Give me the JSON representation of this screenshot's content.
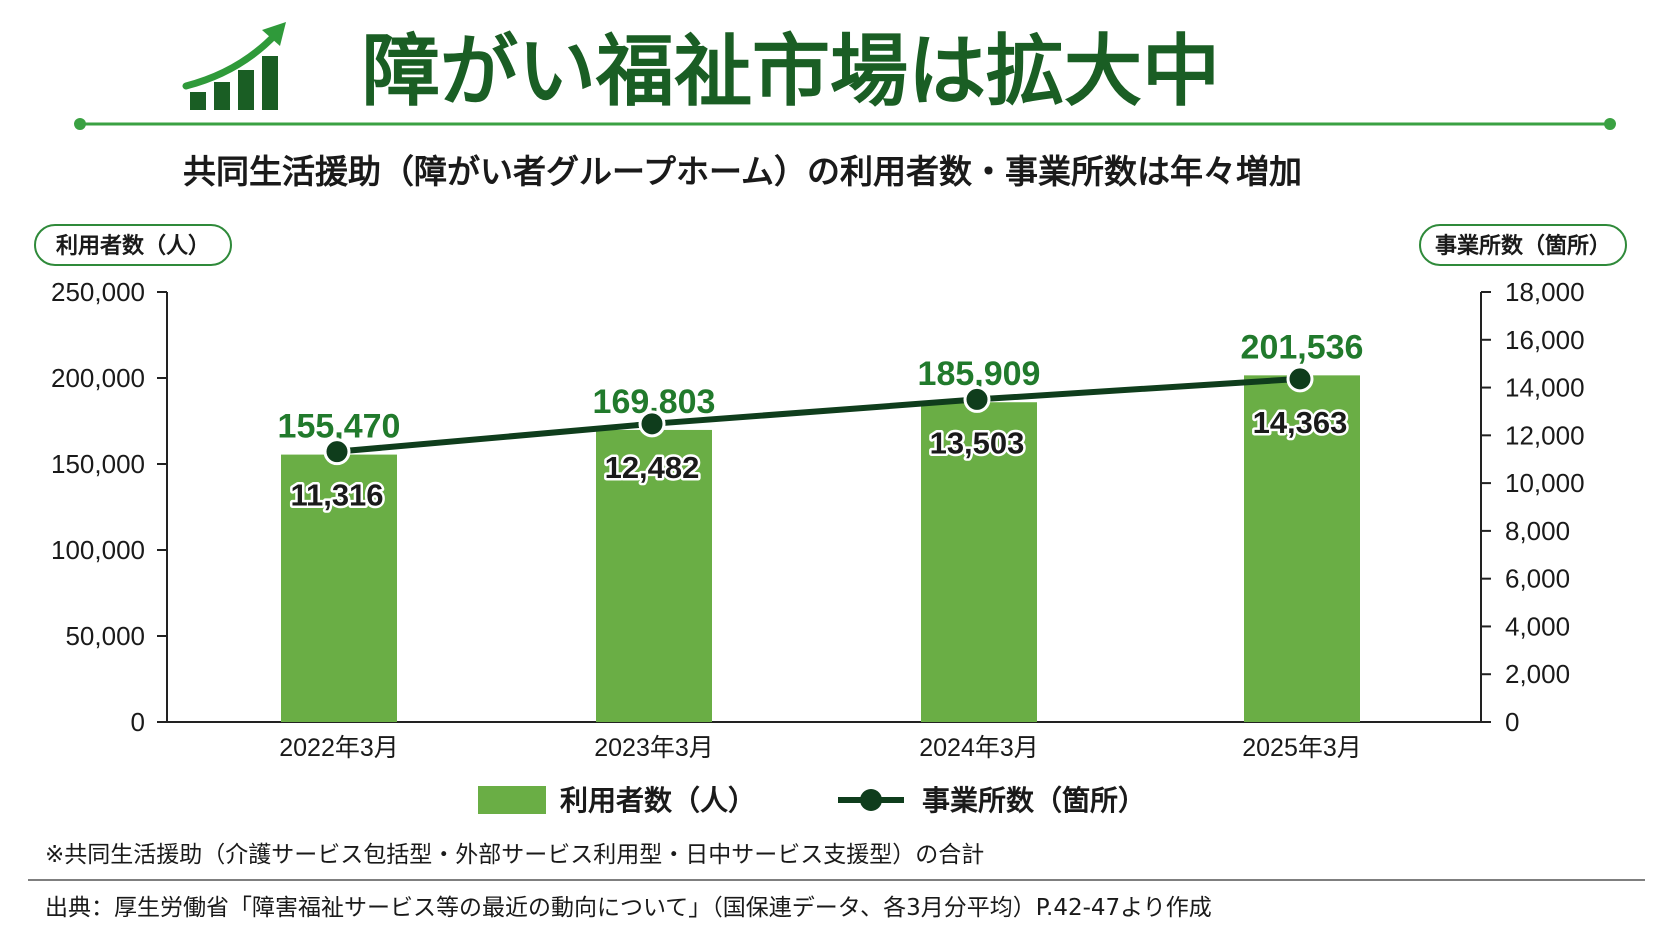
{
  "title": "障がい福祉市場は拡大中",
  "subtitle": "共同生活援助（障がい者グループホーム）の利用者数・事業所数は年々増加",
  "note": "※共同生活援助（介護サービス包括型・外部サービス利用型・日中サービス支援型）の合計",
  "source": "出典：厚生労働省「障害福祉サービス等の最近の動向について」（国保連データ、各3月分平均）P.42-47より作成",
  "icons": {
    "title": "growth-chart-icon"
  },
  "colors": {
    "bar": "#6aae45",
    "line": "#0f3d1c",
    "title": "#1a5e24",
    "value": "#217a2c",
    "rule": "#3aa142"
  },
  "chart_data": {
    "type": "bar",
    "categories": [
      "2022年3月",
      "2023年3月",
      "2024年3月",
      "2025年3月"
    ],
    "ylabel_left": "利用者数（人）",
    "ylabel_right": "事業所数（箇所）",
    "ylim_left": [
      0,
      250000
    ],
    "ylim_right": [
      0,
      18000
    ],
    "yticks_left": [
      "250,000",
      "200,000",
      "150,000",
      "100,000",
      "50,000",
      "0"
    ],
    "yticks_right": [
      "18,000",
      "16,000",
      "14,000",
      "12,000",
      "10,000",
      "8,000",
      "6,000",
      "4,000",
      "2,000",
      "0"
    ],
    "grid": false,
    "legend_position": "bottom",
    "series": [
      {
        "name": "利用者数（人）",
        "type": "bar",
        "axis": "left",
        "values": [
          155470,
          169803,
          185909,
          201536
        ],
        "labels": [
          "155,470",
          "169,803",
          "185,909",
          "201,536"
        ]
      },
      {
        "name": "事業所数（箇所）",
        "type": "line",
        "axis": "right",
        "values": [
          11316,
          12482,
          13503,
          14363
        ],
        "labels": [
          "11,316",
          "12,482",
          "13,503",
          "14,363"
        ]
      }
    ]
  }
}
